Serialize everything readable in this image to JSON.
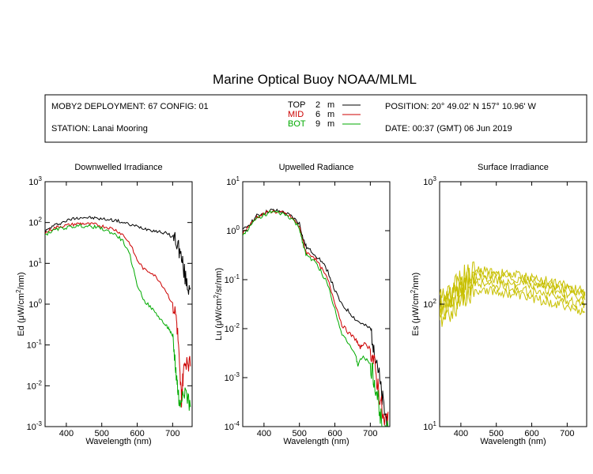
{
  "title": "Marine Optical Buoy NOAA/MLML",
  "info": {
    "deployment": "MOBY2 DEPLOYMENT: 67 CONFIG: 01",
    "station": "STATION: Lanai Mooring",
    "position": "POSITION: 20° 49.02' N   157° 10.96' W",
    "date": "DATE: 00:37 (GMT) 06 Jun 2019"
  },
  "legend": [
    {
      "label": "TOP",
      "depth": "2",
      "unit": "m",
      "color": "#000000"
    },
    {
      "label": "MID",
      "depth": "6",
      "unit": "m",
      "color": "#cc0000"
    },
    {
      "label": "BOT",
      "depth": "9",
      "unit": "m",
      "color": "#00aa00"
    }
  ],
  "chart_data": [
    {
      "type": "line",
      "title": "Downwelled Irradiance",
      "xlabel": "Wavelength (nm)",
      "ylabel_main": "Ed  (μW/cm",
      "ylabel_sup": "2",
      "ylabel_tail": "/nm)",
      "yscale": "log",
      "xlim": [
        340,
        755
      ],
      "ylim": [
        0.001,
        1000
      ],
      "xticks": [
        "400",
        "500",
        "600",
        "700"
      ],
      "yticks": [
        {
          "base": "10",
          "exp": "3"
        },
        {
          "base": "10",
          "exp": "2"
        },
        {
          "base": "10",
          "exp": "1"
        },
        {
          "base": "10",
          "exp": "0"
        },
        {
          "base": "10",
          "exp": "-1"
        },
        {
          "base": "10",
          "exp": "-2"
        },
        {
          "base": "10",
          "exp": "-3"
        }
      ],
      "series": [
        {
          "name": "TOP",
          "color": "#000000",
          "x": [
            340,
            360,
            380,
            400,
            420,
            440,
            460,
            480,
            500,
            520,
            540,
            560,
            580,
            600,
            620,
            640,
            660,
            680,
            700,
            710,
            720,
            730,
            740,
            750
          ],
          "y": [
            60,
            80,
            95,
            110,
            125,
            135,
            132,
            128,
            122,
            118,
            112,
            100,
            88,
            80,
            72,
            66,
            60,
            55,
            45,
            38,
            20,
            8,
            3,
            2.5
          ]
        },
        {
          "name": "MID",
          "color": "#cc0000",
          "x": [
            340,
            360,
            380,
            400,
            420,
            440,
            460,
            480,
            500,
            520,
            540,
            560,
            580,
            600,
            620,
            640,
            660,
            680,
            700,
            710,
            715,
            720,
            725,
            730,
            740,
            750
          ],
          "y": [
            55,
            70,
            80,
            85,
            90,
            95,
            92,
            90,
            82,
            75,
            65,
            50,
            30,
            12,
            7,
            6,
            4,
            2.2,
            1,
            0.5,
            0.15,
            0.02,
            0.005,
            0.02,
            0.05,
            0.03
          ]
        },
        {
          "name": "BOT",
          "color": "#00aa00",
          "x": [
            340,
            360,
            380,
            400,
            420,
            440,
            460,
            480,
            500,
            520,
            540,
            560,
            580,
            600,
            620,
            640,
            660,
            680,
            690,
            700,
            705,
            710,
            715,
            720,
            730,
            740,
            750
          ],
          "y": [
            50,
            62,
            70,
            75,
            80,
            83,
            80,
            78,
            70,
            60,
            50,
            35,
            15,
            3,
            1.2,
            0.8,
            0.5,
            0.3,
            0.25,
            0.15,
            0.06,
            0.02,
            0.008,
            0.003,
            0.01,
            0.006,
            0.003
          ]
        }
      ]
    },
    {
      "type": "line",
      "title": "Upwelled Radiance",
      "xlabel": "Wavelength (nm)",
      "ylabel_main": "Lu  (μW/cm",
      "ylabel_sup": "2",
      "ylabel_tail": "/sr/nm)",
      "yscale": "log",
      "xlim": [
        340,
        755
      ],
      "ylim": [
        0.0001,
        10
      ],
      "xticks": [
        "400",
        "500",
        "600",
        "700"
      ],
      "yticks": [
        {
          "base": "10",
          "exp": "1"
        },
        {
          "base": "10",
          "exp": "0"
        },
        {
          "base": "10",
          "exp": "-1"
        },
        {
          "base": "10",
          "exp": "-2"
        },
        {
          "base": "10",
          "exp": "-3"
        },
        {
          "base": "10",
          "exp": "-4"
        }
      ],
      "series": [
        {
          "name": "TOP",
          "color": "#000000",
          "x": [
            340,
            360,
            380,
            400,
            420,
            440,
            460,
            480,
            500,
            510,
            520,
            540,
            560,
            580,
            600,
            620,
            640,
            660,
            680,
            700,
            710,
            720,
            730,
            740,
            750
          ],
          "y": [
            1.0,
            1.4,
            2.0,
            2.3,
            2.6,
            2.5,
            2.3,
            1.9,
            1.4,
            0.7,
            0.45,
            0.35,
            0.25,
            0.15,
            0.06,
            0.03,
            0.022,
            0.015,
            0.012,
            0.01,
            0.005,
            0.002,
            0.0005,
            0.0002,
            0.0001
          ]
        },
        {
          "name": "MID",
          "color": "#cc0000",
          "x": [
            340,
            360,
            380,
            400,
            420,
            440,
            460,
            480,
            500,
            510,
            520,
            540,
            560,
            580,
            600,
            620,
            640,
            660,
            670,
            680,
            700,
            710,
            720,
            730,
            740,
            750
          ],
          "y": [
            0.9,
            1.3,
            1.9,
            2.2,
            2.5,
            2.4,
            2.2,
            1.8,
            1.2,
            0.6,
            0.35,
            0.3,
            0.18,
            0.1,
            0.035,
            0.012,
            0.008,
            0.006,
            0.004,
            0.005,
            0.004,
            0.002,
            0.0008,
            0.0003,
            0.0001,
            0.0002
          ]
        },
        {
          "name": "BOT",
          "color": "#00aa00",
          "x": [
            340,
            360,
            380,
            400,
            420,
            440,
            460,
            480,
            500,
            510,
            520,
            540,
            560,
            580,
            600,
            620,
            640,
            660,
            665,
            680,
            700,
            710,
            720,
            730,
            740,
            750
          ],
          "y": [
            0.8,
            1.2,
            1.8,
            2.1,
            2.4,
            2.3,
            2.1,
            1.7,
            1.1,
            0.55,
            0.3,
            0.25,
            0.15,
            0.08,
            0.025,
            0.008,
            0.005,
            0.0025,
            0.0018,
            0.0028,
            0.0018,
            0.0009,
            0.0004,
            0.00015,
            0.0001,
            0.0001
          ]
        }
      ]
    },
    {
      "type": "line",
      "title": "Surface Irradiance",
      "xlabel": "Wavelength (nm)",
      "ylabel_main": "Es  (μW/cm",
      "ylabel_sup": "2",
      "ylabel_tail": "/nm)",
      "yscale": "log",
      "xlim": [
        340,
        755
      ],
      "ylim": [
        10,
        1000
      ],
      "xticks": [
        "400",
        "500",
        "600",
        "700"
      ],
      "yticks": [
        {
          "base": "10",
          "exp": "3"
        },
        {
          "base": "10",
          "exp": "2"
        },
        {
          "base": "10",
          "exp": "1"
        }
      ],
      "series": [
        {
          "color": "#c8c000",
          "x": [
            340,
            360,
            380,
            400,
            420,
            440,
            460,
            480,
            500,
            520,
            540,
            560,
            580,
            600,
            620,
            640,
            660,
            680,
            700,
            720,
            740,
            750
          ],
          "y": [
            100,
            120,
            140,
            160,
            175,
            185,
            190,
            185,
            180,
            178,
            175,
            172,
            168,
            165,
            160,
            155,
            150,
            145,
            140,
            132,
            128,
            125
          ]
        },
        {
          "color": "#c8c000",
          "x": [
            340,
            360,
            380,
            400,
            420,
            440,
            460,
            480,
            500,
            520,
            540,
            560,
            580,
            600,
            620,
            640,
            660,
            680,
            700,
            720,
            740,
            750
          ],
          "y": [
            95,
            112,
            130,
            150,
            165,
            175,
            178,
            174,
            170,
            168,
            165,
            162,
            158,
            155,
            150,
            146,
            142,
            138,
            132,
            125,
            120,
            118
          ]
        },
        {
          "color": "#c8c000",
          "x": [
            340,
            360,
            380,
            400,
            420,
            440,
            460,
            480,
            500,
            520,
            540,
            560,
            580,
            600,
            620,
            640,
            660,
            680,
            700,
            720,
            740,
            750
          ],
          "y": [
            88,
            105,
            122,
            140,
            152,
            160,
            164,
            160,
            156,
            154,
            150,
            148,
            144,
            141,
            137,
            133,
            130,
            126,
            120,
            114,
            110,
            108
          ]
        },
        {
          "color": "#c8c000",
          "x": [
            340,
            360,
            380,
            400,
            420,
            440,
            460,
            480,
            500,
            520,
            540,
            560,
            580,
            600,
            620,
            640,
            660,
            680,
            700,
            720,
            740,
            750
          ],
          "y": [
            80,
            95,
            110,
            125,
            138,
            146,
            150,
            146,
            142,
            140,
            136,
            133,
            130,
            127,
            124,
            120,
            117,
            113,
            108,
            103,
            100,
            98
          ]
        },
        {
          "color": "#c8c000",
          "x": [
            340,
            360,
            380,
            400,
            420,
            440,
            460,
            480,
            500,
            520,
            540,
            560,
            580,
            600,
            620,
            640,
            660,
            680,
            700,
            720,
            740,
            750
          ],
          "y": [
            72,
            85,
            98,
            112,
            122,
            130,
            133,
            130,
            126,
            124,
            121,
            118,
            115,
            112,
            109,
            106,
            103,
            100,
            96,
            90,
            88,
            86
          ]
        }
      ]
    }
  ]
}
